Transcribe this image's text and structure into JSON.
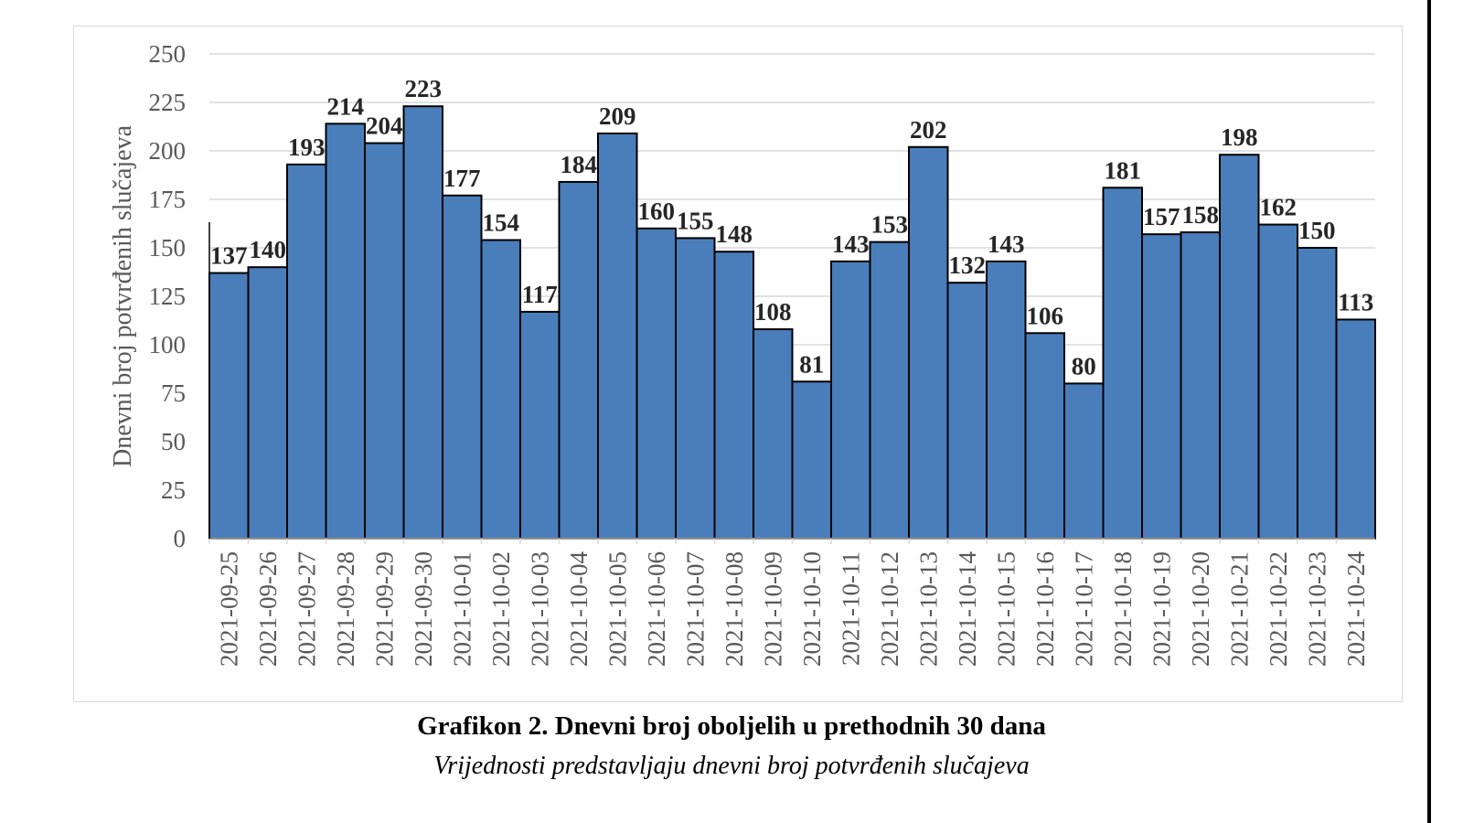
{
  "caption": {
    "title": "Grafikon 2. Dnevni broj oboljelih u prethodnih 30 dana",
    "subtitle": "Vrijednosti predstavljaju dnevni broj potvrđenih slučajeva"
  },
  "colors": {
    "bar": "#4a7ebb",
    "bar_border": "#000000",
    "grid": "#d9d9d9",
    "text": "#595959",
    "label": "#262626"
  },
  "chart_data": {
    "type": "bar",
    "title": "",
    "xlabel": "",
    "ylabel": "Dnevni broj potvrđenih slučajeva",
    "ylim": [
      0,
      250
    ],
    "yticks": [
      0,
      25,
      50,
      75,
      100,
      125,
      150,
      175,
      200,
      225,
      250
    ],
    "grid": true,
    "legend": "none",
    "categories": [
      "2021-09-25",
      "2021-09-26",
      "2021-09-27",
      "2021-09-28",
      "2021-09-29",
      "2021-09-30",
      "2021-10-01",
      "2021-10-02",
      "2021-10-03",
      "2021-10-04",
      "2021-10-05",
      "2021-10-06",
      "2021-10-07",
      "2021-10-08",
      "2021-10-09",
      "2021-10-10",
      "2021-10-11",
      "2021-10-12",
      "2021-10-13",
      "2021-10-14",
      "2021-10-15",
      "2021-10-16",
      "2021-10-17",
      "2021-10-18",
      "2021-10-19",
      "2021-10-20",
      "2021-10-21",
      "2021-10-22",
      "2021-10-23",
      "2021-10-24"
    ],
    "values": [
      137,
      140,
      193,
      214,
      204,
      223,
      177,
      154,
      117,
      184,
      209,
      160,
      155,
      148,
      108,
      81,
      143,
      153,
      202,
      132,
      143,
      106,
      80,
      181,
      157,
      158,
      198,
      162,
      150,
      113
    ]
  }
}
